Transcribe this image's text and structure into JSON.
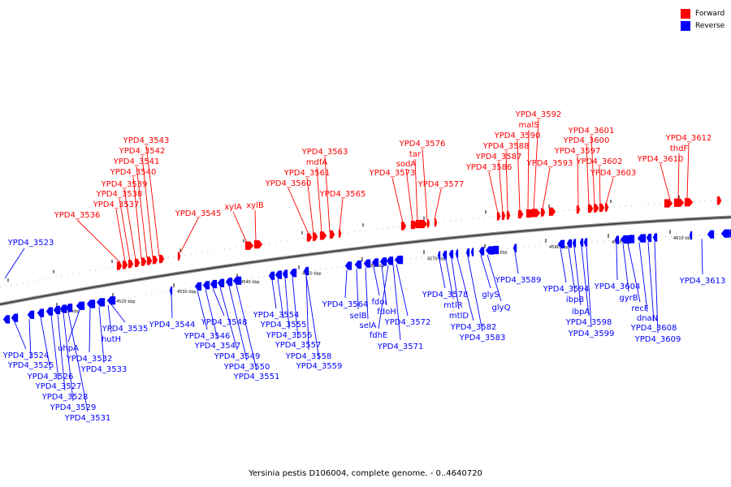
{
  "legend": {
    "forward_label": "Forward",
    "reverse_label": "Reverse",
    "forward_color": "#ff0000",
    "reverse_color": "#0000ff"
  },
  "caption": "Yersinia pestis D106004, complete genome. - 0..4640720",
  "tick_labels": [
    "4510 kbp",
    "4520 kbp",
    "4530 kbp",
    "4540 kbp",
    "4550 kbp",
    "4560 kbp",
    "4570 kbp",
    "4580 kbp",
    "4590 kbp",
    "4600 kbp",
    "4610 kbp"
  ],
  "forward_genes": [
    "YPD4_3536",
    "YPD4_3537",
    "YPD4_3538",
    "YPD4_3539",
    "YPD4_3540",
    "YPD4_3541",
    "YPD4_3542",
    "YPD4_3543",
    "YPD4_3545",
    "xylA",
    "xylB",
    "YPD4_3560",
    "YPD4_3561",
    "mdfA",
    "YPD4_3563",
    "YPD4_3565",
    "YPD4_3573",
    "sodA",
    "tar",
    "YPD4_3576",
    "YPD4_3577",
    "YPD4_3586",
    "YPD4_3587",
    "YPD4_3588",
    "YPD4_3590",
    "malS",
    "YPD4_3592",
    "YPD4_3593",
    "YPD4_3597",
    "YPD4_3600",
    "YPD4_3601",
    "YPD4_3602",
    "YPD4_3603",
    "YPD4_3610",
    "thdF",
    "YPD4_3612"
  ],
  "reverse_genes": [
    "YPD4_3523",
    "YPD4_3524",
    "YPD4_3525",
    "YPD4_3526",
    "YPD4_3527",
    "YPD4_3528",
    "YPD4_3529",
    "YPD4_3531",
    "uhpA",
    "YPD4_3532",
    "YPD4_3533",
    "hutH",
    "YPD4_3535",
    "YPD4_3544",
    "YPD4_3546",
    "YPD4_3547",
    "YPD4_3548",
    "YPD4_3549",
    "YPD4_3550",
    "YPD4_3551",
    "YPD4_3554",
    "YPD4_3555",
    "YPD4_3556",
    "YPD4_3557",
    "YPD4_3558",
    "YPD4_3559",
    "YPD4_3564",
    "selB",
    "selA",
    "fdoI",
    "fdoH",
    "fdhE",
    "YPD4_3572",
    "YPD4_3571",
    "YPD4_3578",
    "mtlR",
    "mtlD",
    "YPD4_3582",
    "YPD4_3583",
    "glyS",
    "glyQ",
    "YPD4_3589",
    "YPD4_3594",
    "ibpB",
    "ibpA",
    "YPD4_3598",
    "YPD4_3599",
    "YPD4_3604",
    "gyrB",
    "recF",
    "dnaN",
    "YPD4_3608",
    "YPD4_3609",
    "YPD4_3613"
  ]
}
